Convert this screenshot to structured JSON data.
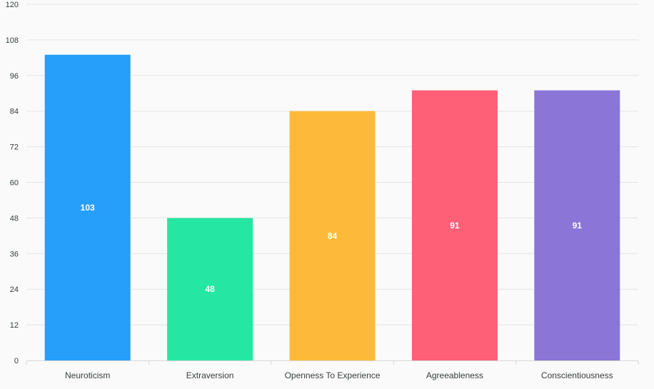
{
  "chart_data": {
    "type": "bar",
    "title": "",
    "xlabel": "",
    "ylabel": "",
    "categories": [
      "Neuroticism",
      "Extraversion",
      "Openness To Experience",
      "Agreeableness",
      "Conscientiousness"
    ],
    "values": [
      103,
      48,
      84,
      91,
      91
    ],
    "colors": [
      "#269ffb",
      "#26e6a4",
      "#fdba3a",
      "#fe6077",
      "#8b75d7"
    ],
    "ylim": [
      0,
      120
    ],
    "yticks": [
      0,
      12,
      24,
      36,
      48,
      60,
      72,
      84,
      96,
      108,
      120
    ],
    "grid": true,
    "legend": "none",
    "data_labels": [
      "103",
      "48",
      "84",
      "91",
      "91"
    ]
  }
}
